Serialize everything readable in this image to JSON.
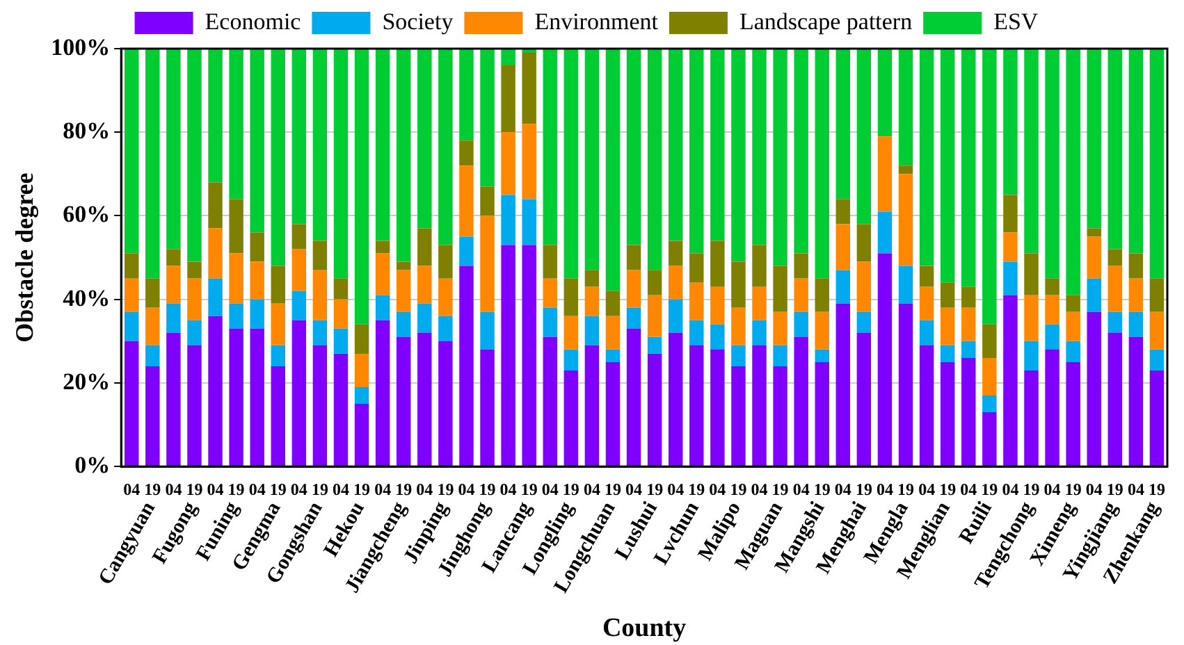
{
  "chart_data": {
    "type": "bar",
    "stacked": true,
    "ylabel": "Obstacle degree",
    "xlabel": "County",
    "categories": [
      "04",
      "19",
      "04",
      "19",
      "04",
      "19",
      "04",
      "19",
      "04",
      "19",
      "04",
      "19",
      "04",
      "19",
      "04",
      "19",
      "04",
      "19",
      "04",
      "19",
      "04",
      "19",
      "04",
      "19",
      "04",
      "19",
      "04",
      "19",
      "04",
      "19",
      "04",
      "19",
      "04",
      "19",
      "04",
      "19",
      "04",
      "19",
      "04",
      "19",
      "04",
      "19",
      "04",
      "19",
      "04",
      "19",
      "04",
      "19",
      "04",
      "19"
    ],
    "annotations": [
      "Cangyuan",
      "Fugong",
      "Funing",
      "Gengma",
      "Gongshan",
      "Hekou",
      "Jiangcheng",
      "Jinping",
      "Jinghong",
      "Lancang",
      "Longling",
      "Longchuan",
      "Lushui",
      "Lvchun",
      "Malipo",
      "Maguan",
      "Mangshi",
      "Menghai",
      "Mengla",
      "Menglian",
      "Ruili",
      "Tengchong",
      "Ximeng",
      "Yingjiang",
      "Zhenkang"
    ],
    "series": [
      {
        "name": "Economic",
        "color": "#8000ff",
        "values": [
          30,
          24,
          32,
          29,
          36,
          33,
          33,
          24,
          35,
          29,
          27,
          15,
          35,
          31,
          32,
          30,
          48,
          28,
          53,
          53,
          31,
          23,
          29,
          25,
          33,
          27,
          32,
          29,
          28,
          24,
          29,
          24,
          31,
          25,
          39,
          32,
          51,
          39,
          29,
          25,
          26,
          13,
          41,
          23,
          28,
          25,
          37,
          32,
          31,
          23
        ]
      },
      {
        "name": "Society",
        "color": "#00aaee",
        "values": [
          7,
          5,
          7,
          6,
          9,
          6,
          7,
          5,
          7,
          6,
          6,
          4,
          6,
          6,
          7,
          6,
          7,
          9,
          12,
          11,
          7,
          5,
          7,
          3,
          5,
          4,
          8,
          6,
          6,
          5,
          6,
          5,
          6,
          3,
          8,
          5,
          10,
          9,
          6,
          4,
          4,
          4,
          8,
          7,
          6,
          5,
          8,
          5,
          6,
          5
        ]
      },
      {
        "name": "Environment",
        "color": "#ff8800",
        "values": [
          8,
          9,
          9,
          10,
          12,
          12,
          9,
          10,
          10,
          12,
          7,
          8,
          10,
          10,
          9,
          9,
          17,
          23,
          15,
          18,
          7,
          8,
          7,
          8,
          9,
          10,
          8,
          9,
          9,
          9,
          8,
          8,
          8,
          9,
          11,
          12,
          18,
          22,
          8,
          9,
          8,
          9,
          7,
          11,
          7,
          7,
          10,
          11,
          8,
          9
        ]
      },
      {
        "name": "Landscape pattern",
        "color": "#808000",
        "values": [
          6,
          7,
          4,
          4,
          11,
          13,
          7,
          9,
          6,
          7,
          5,
          7,
          3,
          2,
          9,
          8,
          6,
          7,
          16,
          17,
          8,
          9,
          4,
          6,
          6,
          6,
          6,
          7,
          11,
          11,
          10,
          11,
          6,
          8,
          6,
          9,
          0,
          2,
          5,
          6,
          5,
          8,
          9,
          10,
          4,
          4,
          2,
          4,
          6,
          8
        ]
      },
      {
        "name": "ESV",
        "color": "#00cc33",
        "values": [
          49,
          55,
          48,
          51,
          32,
          36,
          44,
          52,
          42,
          46,
          55,
          66,
          46,
          51,
          43,
          47,
          22,
          33,
          4,
          1,
          47,
          55,
          53,
          58,
          47,
          53,
          46,
          49,
          46,
          51,
          47,
          52,
          49,
          55,
          36,
          42,
          21,
          28,
          52,
          56,
          57,
          66,
          35,
          49,
          55,
          59,
          43,
          48,
          49,
          55
        ]
      }
    ],
    "ylim": [
      0,
      100
    ],
    "yticks": [
      {
        "value": 0,
        "label": "0%"
      },
      {
        "value": 20,
        "label": "20%"
      },
      {
        "value": 40,
        "label": "40%"
      },
      {
        "value": 60,
        "label": "60%"
      },
      {
        "value": 80,
        "label": "80%"
      },
      {
        "value": 100,
        "label": "100%"
      }
    ],
    "grid": "y",
    "legend": "top"
  }
}
